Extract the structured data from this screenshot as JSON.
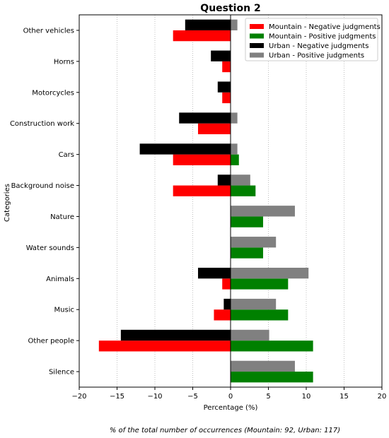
{
  "chart_data": {
    "type": "bar",
    "orientation": "horizontal",
    "title": "Question 2",
    "xlabel": "Percentage (%)",
    "ylabel": "Categories",
    "xlim": [
      -20,
      20
    ],
    "x_ticks": [
      -20,
      -15,
      -10,
      -5,
      0,
      5,
      10,
      15,
      20
    ],
    "grid": "vertical dotted",
    "legend_position": "top-right",
    "categories": [
      "Other vehicles",
      "Horns",
      "Motorcycles",
      "Construction work",
      "Cars",
      "Background noise",
      "Nature",
      "Water sounds",
      "Animals",
      "Music",
      "Other people",
      "Silence"
    ],
    "series": [
      {
        "name": "Mountain - Negative judgments",
        "color": "#ff0000",
        "values": [
          -7.6,
          -1.1,
          -1.1,
          -4.3,
          -7.6,
          -7.6,
          0,
          0,
          -1.1,
          -2.2,
          -17.4,
          0
        ]
      },
      {
        "name": "Mountain - Positive judgments",
        "color": "#008000",
        "values": [
          0,
          0,
          0,
          0,
          1.1,
          3.3,
          4.3,
          4.3,
          7.6,
          7.6,
          10.9,
          10.9
        ]
      },
      {
        "name": "Urban - Negative judgments",
        "color": "#000000",
        "values": [
          -6.0,
          -2.6,
          -1.7,
          -6.8,
          -12.0,
          -1.7,
          0,
          0,
          -4.3,
          -0.9,
          -14.5,
          0
        ]
      },
      {
        "name": "Urban - Positive judgments",
        "color": "#808080",
        "values": [
          0.9,
          0,
          0,
          0.9,
          0.9,
          2.6,
          8.5,
          6.0,
          10.3,
          6.0,
          5.1,
          8.5
        ]
      }
    ],
    "footnote": "% of the total number of occurrences (Mountain: 92, Urban: 117)"
  }
}
